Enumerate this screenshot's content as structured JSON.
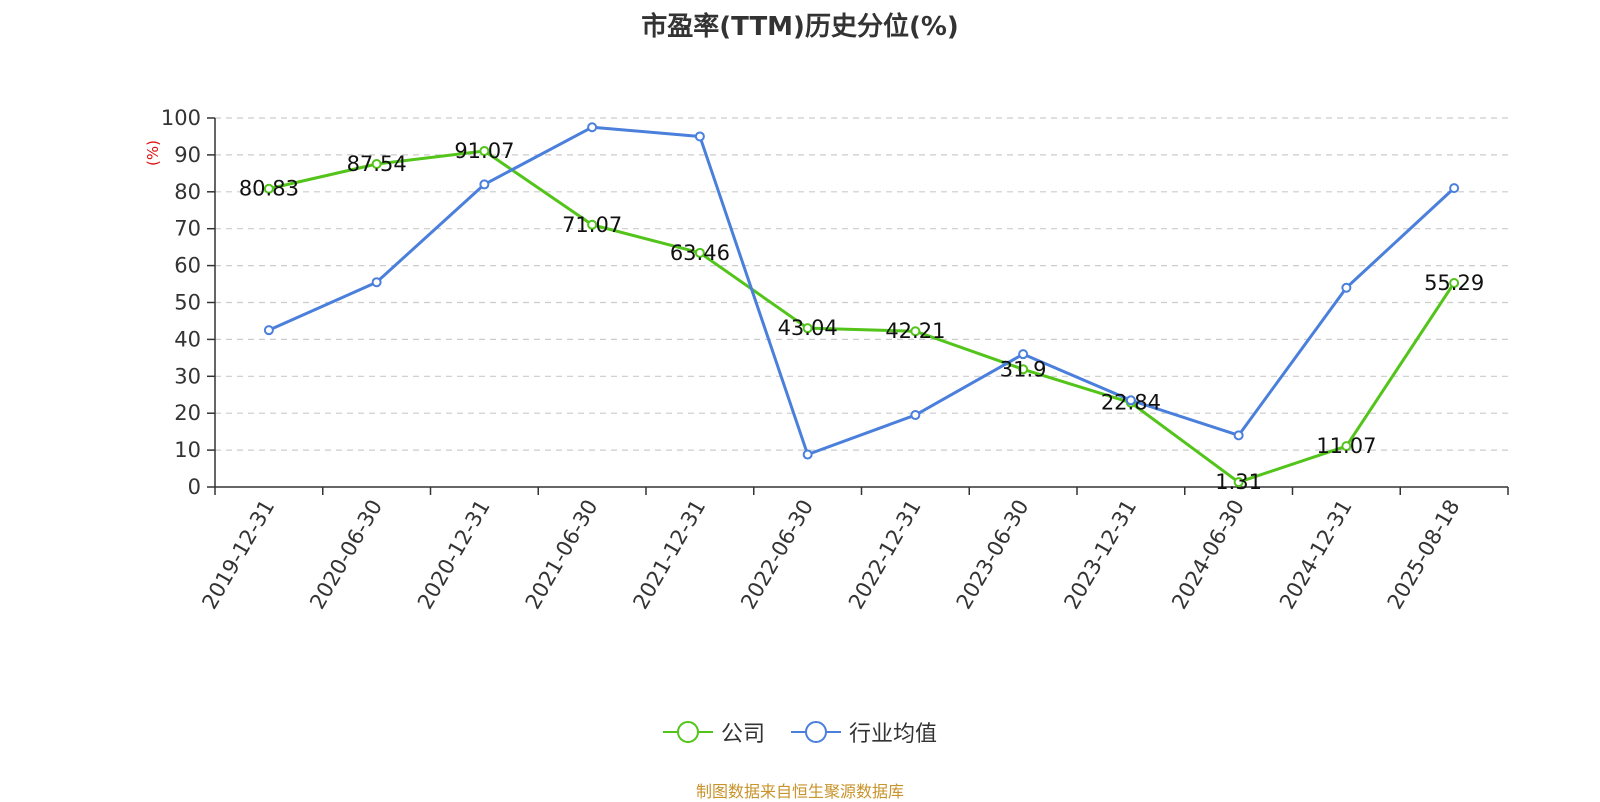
{
  "colors": {
    "company": "#52c41a",
    "industry": "#4a7fdc",
    "unit": "#e01010",
    "source": "#c8932a"
  },
  "source_text": "制图数据来自恒生聚源数据库",
  "chart_data": {
    "type": "line",
    "title": "市盈率(TTM)历史分位(%)",
    "ylabel": "(%)",
    "xlabel": "",
    "ylim": [
      0,
      100
    ],
    "yticks": [
      0,
      10,
      20,
      30,
      40,
      50,
      60,
      70,
      80,
      90,
      100
    ],
    "grid": true,
    "legend_position": "bottom",
    "categories": [
      "2019-12-31",
      "2020-06-30",
      "2020-12-31",
      "2021-06-30",
      "2021-12-31",
      "2022-06-30",
      "2022-12-31",
      "2023-06-30",
      "2023-12-31",
      "2024-06-30",
      "2024-12-31",
      "2025-08-18"
    ],
    "series": [
      {
        "name": "公司",
        "values": [
          80.83,
          87.54,
          91.07,
          71.07,
          63.46,
          43.04,
          42.21,
          31.9,
          22.84,
          1.31,
          11.07,
          55.29
        ],
        "show_labels": true
      },
      {
        "name": "行业均值",
        "values": [
          42.5,
          55.5,
          82,
          97.5,
          95,
          8.8,
          19.5,
          36,
          23.5,
          14,
          54,
          81
        ],
        "show_labels": false
      }
    ]
  }
}
